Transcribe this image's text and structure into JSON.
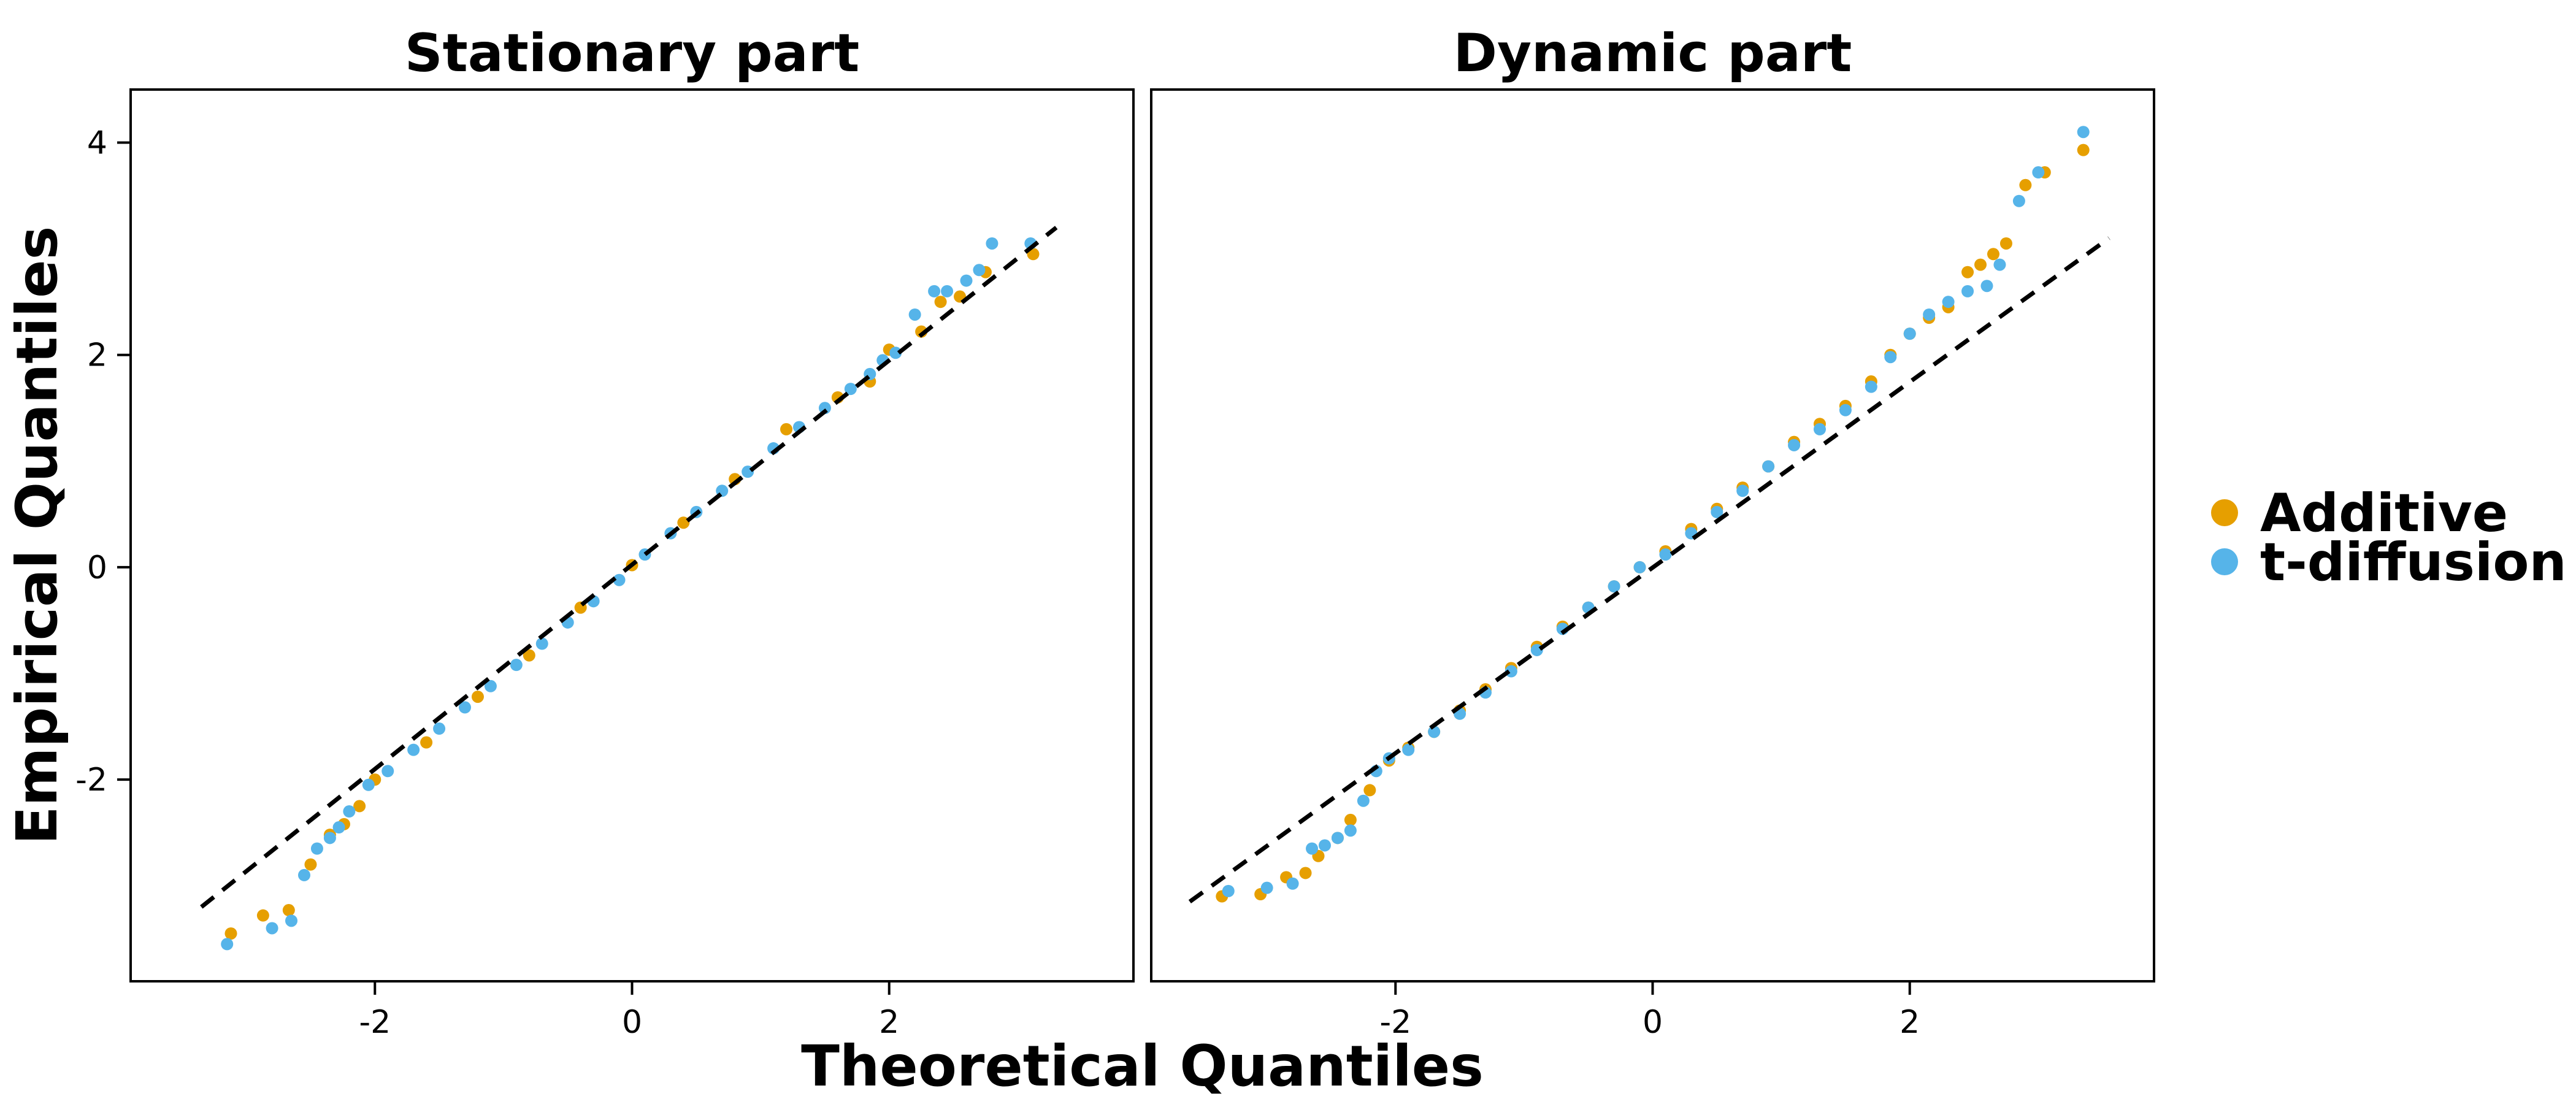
{
  "chart_data": {
    "type": "scatter",
    "xlabel": "Theoretical Quantiles",
    "ylabel": "Empirical Quantiles",
    "legend": {
      "position": "right",
      "entries": [
        {
          "name": "Additive",
          "color": "#E69F00"
        },
        {
          "name": "t-diffusion",
          "color": "#56B4E9"
        }
      ]
    },
    "panels": [
      {
        "title": "Stationary part",
        "xlim": [
          -3.9,
          3.9
        ],
        "ylim": [
          -3.9,
          4.5
        ],
        "xticks": [
          -2,
          0,
          2
        ],
        "yticks": [
          -2,
          0,
          2,
          4
        ],
        "reference_line": {
          "style": "dashed",
          "color": "#000000",
          "from": [
            -3.35,
            -3.2
          ],
          "to": [
            3.3,
            3.2
          ]
        },
        "series": [
          {
            "name": "Additive",
            "color": "#E69F00",
            "x": [
              -3.12,
              -2.87,
              -2.67,
              -2.5,
              -2.35,
              -2.24,
              -2.12,
              -2.0,
              -1.6,
              -1.2,
              -0.8,
              -0.4,
              0.0,
              0.4,
              0.8,
              1.2,
              1.6,
              1.85,
              2.0,
              2.25,
              2.4,
              2.55,
              2.75,
              3.12
            ],
            "y": [
              -3.45,
              -3.28,
              -3.23,
              -2.8,
              -2.52,
              -2.42,
              -2.25,
              -2.0,
              -1.65,
              -1.22,
              -0.83,
              -0.38,
              0.02,
              0.42,
              0.83,
              1.3,
              1.6,
              1.75,
              2.05,
              2.22,
              2.5,
              2.55,
              2.78,
              2.95
            ]
          },
          {
            "name": "t-diffusion",
            "color": "#56B4E9",
            "x": [
              -3.15,
              -2.8,
              -2.65,
              -2.55,
              -2.45,
              -2.35,
              -2.28,
              -2.2,
              -2.05,
              -1.9,
              -1.7,
              -1.5,
              -1.3,
              -1.1,
              -0.9,
              -0.7,
              -0.5,
              -0.3,
              -0.1,
              0.1,
              0.3,
              0.5,
              0.7,
              0.9,
              1.1,
              1.3,
              1.5,
              1.7,
              1.85,
              1.95,
              2.05,
              2.2,
              2.35,
              2.45,
              2.6,
              2.7,
              2.8,
              3.1
            ],
            "y": [
              -3.55,
              -3.4,
              -3.33,
              -2.9,
              -2.65,
              -2.55,
              -2.45,
              -2.3,
              -2.05,
              -1.92,
              -1.72,
              -1.52,
              -1.32,
              -1.12,
              -0.92,
              -0.72,
              -0.52,
              -0.32,
              -0.12,
              0.12,
              0.32,
              0.52,
              0.72,
              0.9,
              1.12,
              1.32,
              1.5,
              1.68,
              1.82,
              1.95,
              2.02,
              2.38,
              2.6,
              2.6,
              2.7,
              2.8,
              3.05,
              3.05
            ]
          }
        ]
      },
      {
        "title": "Dynamic part",
        "xlim": [
          -3.9,
          3.9
        ],
        "ylim": [
          -3.9,
          4.5
        ],
        "xticks": [
          -2,
          0,
          2
        ],
        "yticks": [
          -2,
          0,
          2,
          4
        ],
        "reference_line": {
          "style": "dashed",
          "color": "#000000",
          "from": [
            -3.6,
            -3.15
          ],
          "to": [
            3.55,
            3.1
          ]
        },
        "series": [
          {
            "name": "Additive",
            "color": "#E69F00",
            "x": [
              -3.35,
              -3.05,
              -2.85,
              -2.7,
              -2.6,
              -2.45,
              -2.35,
              -2.2,
              -2.05,
              -1.9,
              -1.7,
              -1.5,
              -1.3,
              -1.1,
              -0.9,
              -0.7,
              -0.5,
              -0.3,
              -0.1,
              0.1,
              0.3,
              0.5,
              0.7,
              0.9,
              1.1,
              1.3,
              1.5,
              1.7,
              1.85,
              2.0,
              2.15,
              2.3,
              2.45,
              2.55,
              2.65,
              2.75,
              2.9,
              3.05,
              3.35
            ],
            "y": [
              -3.1,
              -3.08,
              -2.92,
              -2.88,
              -2.72,
              -2.55,
              -2.38,
              -2.1,
              -1.82,
              -1.7,
              -1.55,
              -1.35,
              -1.15,
              -0.95,
              -0.75,
              -0.56,
              -0.38,
              -0.18,
              0.0,
              0.15,
              0.36,
              0.55,
              0.75,
              0.95,
              1.18,
              1.35,
              1.52,
              1.75,
              2.0,
              2.2,
              2.35,
              2.45,
              2.78,
              2.85,
              2.95,
              3.05,
              3.6,
              3.72,
              3.93
            ]
          },
          {
            "name": "t-diffusion",
            "color": "#56B4E9",
            "x": [
              -3.3,
              -3.0,
              -2.8,
              -2.65,
              -2.55,
              -2.45,
              -2.35,
              -2.25,
              -2.15,
              -2.05,
              -1.9,
              -1.7,
              -1.5,
              -1.3,
              -1.1,
              -0.9,
              -0.7,
              -0.5,
              -0.3,
              -0.1,
              0.1,
              0.3,
              0.5,
              0.7,
              0.9,
              1.1,
              1.3,
              1.5,
              1.7,
              1.85,
              2.0,
              2.15,
              2.3,
              2.45,
              2.6,
              2.7,
              2.85,
              3.0,
              3.35
            ],
            "y": [
              -3.05,
              -3.02,
              -2.98,
              -2.65,
              -2.62,
              -2.55,
              -2.48,
              -2.2,
              -1.92,
              -1.8,
              -1.72,
              -1.55,
              -1.38,
              -1.18,
              -0.98,
              -0.78,
              -0.58,
              -0.38,
              -0.18,
              0.0,
              0.12,
              0.32,
              0.52,
              0.72,
              0.95,
              1.15,
              1.3,
              1.48,
              1.7,
              1.98,
              2.2,
              2.38,
              2.5,
              2.6,
              2.65,
              2.85,
              3.45,
              3.72,
              4.1
            ]
          }
        ]
      }
    ]
  }
}
